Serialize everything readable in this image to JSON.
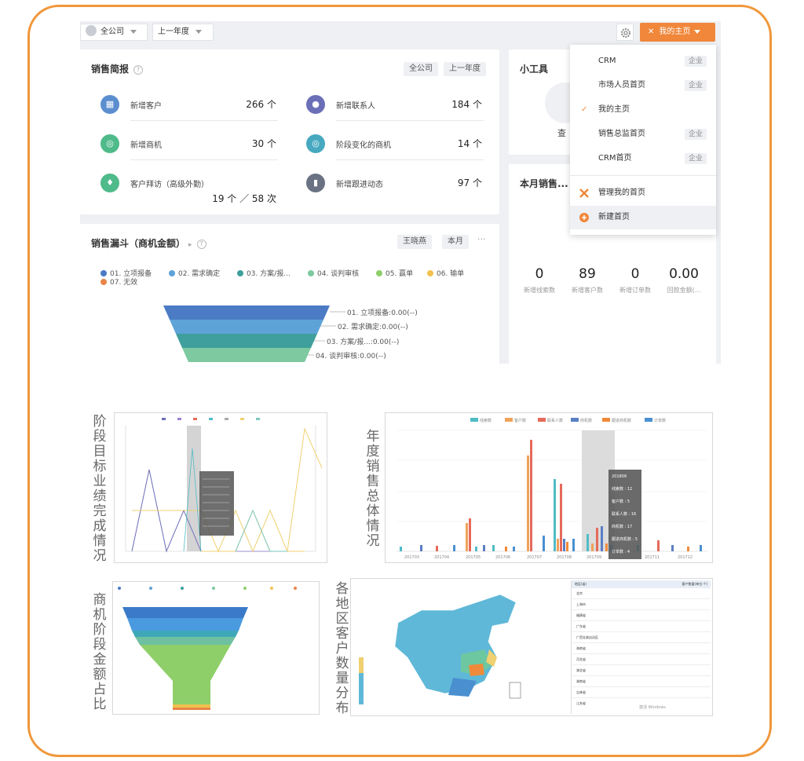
{
  "topbar": {
    "company_select": "全公司",
    "period_select": "上一年度",
    "home_button": "我的主页"
  },
  "sales_brief": {
    "title": "销售简报",
    "tags": [
      "全公司",
      "上一年度"
    ],
    "metrics": [
      {
        "label": "新增客户",
        "value": "266 个",
        "color": "#5b8ecf",
        "icon": "building-icon"
      },
      {
        "label": "新增联系人",
        "value": "184 个",
        "color": "#6b6fb8",
        "icon": "person-icon"
      },
      {
        "label": "新增商机",
        "value": "30 个",
        "color": "#4fba8a",
        "icon": "target-icon"
      },
      {
        "label": "阶段变化的商机",
        "value": "14 个",
        "color": "#47a9c0",
        "icon": "target-icon"
      },
      {
        "label": "客户拜访（高级外勤）",
        "value": "19 个 ／ 58 次",
        "color": "#4fba8a",
        "icon": "location-icon"
      },
      {
        "label": "新增跟进动态",
        "value": "97 个",
        "color": "#6a7283",
        "icon": "bar-chart-icon"
      }
    ]
  },
  "funnel_card": {
    "title": "销售漏斗（商机金额）",
    "tags": [
      "王晓燕",
      "本月"
    ],
    "more": "···",
    "legend": [
      {
        "label": "01. 立项报备",
        "color": "#4a7bc4"
      },
      {
        "label": "02. 需求确定",
        "color": "#5ea3d8"
      },
      {
        "label": "03. 方案/报...",
        "color": "#3f9f9c"
      },
      {
        "label": "04. 谈判审核",
        "color": "#7ec9a0"
      },
      {
        "label": "05. 赢单",
        "color": "#8fcf6a"
      },
      {
        "label": "06. 输单",
        "color": "#f0c24e"
      },
      {
        "label": "07. 无效",
        "color": "#e8854a"
      }
    ],
    "funnel_labels": [
      "01. 立项报备:0.00(--)",
      "02. 需求确定:0.00(--)",
      "03. 方案/报...:0.00(--)",
      "04. 谈判审核:0.00(--)"
    ]
  },
  "widgets_card": {
    "title": "小工具",
    "partial_label": "查"
  },
  "monthly_card": {
    "title": "本月销售...",
    "stats": [
      {
        "value": "0",
        "label": "新增线索数"
      },
      {
        "value": "89",
        "label": "新增客户数"
      },
      {
        "value": "0",
        "label": "新增订单数"
      },
      {
        "value": "0.00",
        "label": "回款金额(..."
      }
    ]
  },
  "dropdown": {
    "items": [
      {
        "label": "CRM",
        "badge": "企业"
      },
      {
        "label": "市场人员首页",
        "badge": "企业"
      },
      {
        "label": "我的主页",
        "checked": true
      },
      {
        "label": "销售总监首页",
        "badge": "企业"
      },
      {
        "label": "CRM首页",
        "badge": "企业"
      }
    ],
    "manage": "管理我的首页",
    "create": "新建首页"
  },
  "section_labels": {
    "stage_target": "阶段目标业绩完成情况",
    "annual_sales": "年度销售总体情况",
    "opportunity_stage": "商机阶段金额占比",
    "region_customers": "各地区客户数量分布"
  },
  "annual_chart": {
    "legend": [
      "线索数",
      "客户数",
      "联系人数",
      "商机数",
      "跟进商机数",
      "订单数"
    ],
    "colors": [
      "#4fbcc6",
      "#f0a25a",
      "#e66a5a",
      "#5b7fc4",
      "#f08a3a",
      "#4a90d0"
    ],
    "categories": [
      "201703",
      "201704",
      "201705",
      "201706",
      "201707",
      "201708",
      "201709",
      "201710",
      "201711",
      "201712"
    ],
    "tooltip": {
      "title": "201809",
      "lines": [
        "线索数 : 12",
        "客户数 : 5",
        "联系人数 : 16",
        "商机数 : 17",
        "跟进商机数 : 5",
        "订单数 : 4"
      ]
    }
  },
  "region_table": {
    "headers": [
      "地区(省)",
      "客户数量(单位:个)"
    ],
    "rows": [
      "北京",
      "上海市",
      "福建省",
      "广东省",
      "广西壮族自治区",
      "海南省",
      "河北省",
      "湖北省",
      "湖南省",
      "吉林省",
      "江苏省"
    ]
  },
  "watermark": "激活 Windows"
}
